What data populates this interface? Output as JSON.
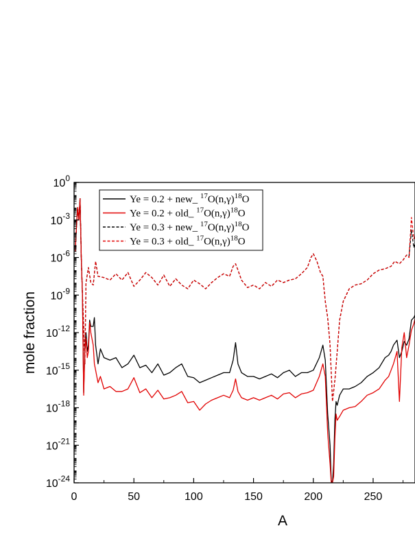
{
  "chart_data": {
    "type": "line",
    "xlabel": "A",
    "ylabel": "mole fraction",
    "xlim": [
      0,
      285
    ],
    "ylim_log10": [
      -24,
      0
    ],
    "yscale": "log",
    "grid": false,
    "legend_placement": "top-left",
    "x_ticks": [
      0,
      50,
      100,
      150,
      200,
      250
    ],
    "y_ticks": [
      {
        "exp": 0,
        "base": "10",
        "sup": "0"
      },
      {
        "exp": -3,
        "base": "10",
        "sup": "-3"
      },
      {
        "exp": -6,
        "base": "10",
        "sup": "-6"
      },
      {
        "exp": -9,
        "base": "10",
        "sup": "-9"
      },
      {
        "exp": -12,
        "base": "10",
        "sup": "-12"
      },
      {
        "exp": -15,
        "base": "10",
        "sup": "-15"
      },
      {
        "exp": -18,
        "base": "10",
        "sup": "-18"
      },
      {
        "exp": -21,
        "base": "10",
        "sup": "-21"
      },
      {
        "exp": -24,
        "base": "10",
        "sup": "-24"
      }
    ],
    "series": [
      {
        "id": "s1",
        "name": "Ye = 0.2 + new_ 17O(n,γ)18O",
        "color": "#000000",
        "dash": "solid",
        "x": [
          1,
          2,
          3,
          4,
          5,
          6,
          7,
          8,
          9,
          10,
          11,
          12,
          13,
          14,
          16,
          17,
          18,
          20,
          22,
          25,
          30,
          35,
          40,
          45,
          50,
          55,
          60,
          65,
          70,
          75,
          80,
          85,
          90,
          95,
          100,
          105,
          110,
          115,
          120,
          125,
          130,
          133,
          135,
          137,
          140,
          145,
          150,
          155,
          160,
          165,
          170,
          175,
          180,
          185,
          190,
          195,
          200,
          205,
          208,
          210,
          212,
          214,
          215,
          216,
          217,
          218,
          219,
          220,
          222,
          225,
          230,
          235,
          240,
          245,
          250,
          255,
          260,
          263,
          265,
          267,
          270,
          272,
          274,
          276,
          278,
          280,
          282,
          284,
          285
        ],
        "log10": [
          -5.5,
          -3.5,
          -2,
          -3,
          -1.3,
          -6,
          -9,
          -16.8,
          -13,
          -12,
          -13.5,
          -13,
          -11,
          -11.5,
          -11.5,
          -10.8,
          -13,
          -14.5,
          -13.3,
          -14,
          -14.2,
          -14,
          -14.8,
          -14.5,
          -13.8,
          -14.8,
          -14.6,
          -15.2,
          -14.5,
          -15.4,
          -15.2,
          -14.8,
          -14.5,
          -15.5,
          -15.6,
          -16,
          -15.8,
          -15.6,
          -15.4,
          -15.2,
          -15.2,
          -14.2,
          -12.8,
          -14.5,
          -15.2,
          -15.5,
          -15.5,
          -15.7,
          -15.5,
          -15.3,
          -15.6,
          -15.2,
          -15,
          -15.5,
          -15.2,
          -15.2,
          -15,
          -14,
          -13,
          -14.2,
          -18.5,
          -21,
          -23.8,
          -24,
          -22.5,
          -19,
          -17.5,
          -17.8,
          -17,
          -16.5,
          -16.5,
          -16.3,
          -16,
          -15.5,
          -15.2,
          -14.8,
          -14,
          -13.8,
          -13.5,
          -13,
          -12.6,
          -14,
          -13.5,
          -12.7,
          -13,
          -12.5,
          -11,
          -10.8,
          -10.6
        ]
      },
      {
        "id": "s2",
        "name": "Ye = 0.2 + old_ 17O(n,γ)18O",
        "color": "#e10000",
        "dash": "solid",
        "x": [
          1,
          2,
          3,
          4,
          5,
          6,
          7,
          8,
          9,
          10,
          11,
          12,
          13,
          14,
          16,
          17,
          18,
          20,
          22,
          25,
          30,
          35,
          40,
          45,
          50,
          55,
          60,
          65,
          70,
          75,
          80,
          85,
          90,
          95,
          100,
          105,
          110,
          115,
          120,
          125,
          130,
          133,
          135,
          137,
          140,
          145,
          150,
          155,
          160,
          165,
          170,
          175,
          180,
          185,
          190,
          195,
          200,
          205,
          208,
          210,
          212,
          214,
          215,
          216,
          217,
          218,
          219,
          220,
          222,
          225,
          230,
          235,
          240,
          245,
          250,
          255,
          260,
          263,
          265,
          267,
          270,
          272,
          274,
          276,
          278,
          280,
          282,
          284,
          285
        ],
        "log10": [
          -5.5,
          -3.5,
          -2,
          -3,
          -1.3,
          -6,
          -9,
          -17,
          -13.5,
          -12.5,
          -14,
          -13.5,
          -11.2,
          -12,
          -13,
          -14.5,
          -15,
          -16,
          -15.5,
          -16.5,
          -16.3,
          -16.7,
          -16.7,
          -16.5,
          -15.6,
          -16.8,
          -16.5,
          -17.2,
          -16.6,
          -17.3,
          -17.2,
          -17,
          -16.7,
          -17.6,
          -17.5,
          -18.2,
          -17.7,
          -17.4,
          -17.2,
          -17,
          -17.2,
          -16.6,
          -15.7,
          -16.7,
          -17.2,
          -17.4,
          -17.2,
          -17.4,
          -17.2,
          -17,
          -17.3,
          -16.9,
          -16.8,
          -17.2,
          -16.9,
          -16.8,
          -16.6,
          -15.5,
          -14.5,
          -15.5,
          -20,
          -22.5,
          -24,
          -24,
          -23.5,
          -20.5,
          -18.5,
          -19,
          -18.7,
          -18.2,
          -18,
          -17.9,
          -17.5,
          -17,
          -16.8,
          -16.5,
          -15.8,
          -15.5,
          -15,
          -14.5,
          -13.5,
          -17.5,
          -13.2,
          -12,
          -14,
          -13,
          -11.8,
          -11.3,
          -10.9
        ]
      },
      {
        "id": "s3",
        "name": "Ye = 0.3 + new_ 17O(n,γ)18O",
        "color": "#000000",
        "dash": "dashed",
        "x": [
          1,
          2,
          3,
          4,
          5,
          6,
          7,
          8,
          9,
          10,
          12,
          14,
          16,
          18,
          20,
          25,
          30,
          35,
          40,
          45,
          50,
          55,
          60,
          65,
          70,
          75,
          80,
          85,
          90,
          95,
          100,
          105,
          110,
          115,
          120,
          125,
          130,
          133,
          135,
          137,
          140,
          145,
          150,
          155,
          160,
          165,
          170,
          175,
          180,
          185,
          190,
          195,
          198,
          200,
          203,
          206,
          208,
          210,
          212,
          214,
          216,
          218,
          220,
          222,
          225,
          230,
          235,
          240,
          245,
          250,
          255,
          260,
          265,
          268,
          270,
          272,
          275,
          278,
          280,
          282,
          284,
          285
        ],
        "log10": [
          -5.5,
          -3.5,
          -2,
          -3,
          -1.3,
          -6,
          -9,
          -11.5,
          -14.5,
          -8,
          -6.8,
          -8,
          -8.2,
          -6.3,
          -7.5,
          -7.6,
          -7.8,
          -7.3,
          -7.8,
          -7.2,
          -8.3,
          -7.8,
          -7.2,
          -7.6,
          -8.2,
          -7.4,
          -8.3,
          -7.7,
          -8.2,
          -8.5,
          -7.8,
          -8.1,
          -8.5,
          -8,
          -7.6,
          -7.3,
          -7.5,
          -6.7,
          -6.5,
          -7,
          -7.8,
          -8.4,
          -8.2,
          -8.5,
          -8.0,
          -8.3,
          -7.8,
          -8.0,
          -7.8,
          -7.7,
          -7.3,
          -6.8,
          -6.0,
          -5.7,
          -6.3,
          -7.2,
          -7.5,
          -9.5,
          -10.8,
          -13,
          -17.5,
          -15.8,
          -13.5,
          -11,
          -9.5,
          -8.5,
          -8.2,
          -8.1,
          -7.8,
          -7.3,
          -7.0,
          -6.9,
          -6.7,
          -6.3,
          -6.4,
          -6.5,
          -6.2,
          -5.8,
          -5.9,
          -3.8,
          -5.2,
          -4.8
        ]
      },
      {
        "id": "s4",
        "name": "Ye = 0.3 + old_ 17O(n,γ)18O",
        "color": "#e10000",
        "dash": "dashed",
        "x": [
          1,
          2,
          3,
          4,
          5,
          6,
          7,
          8,
          9,
          10,
          12,
          14,
          16,
          18,
          20,
          25,
          30,
          35,
          40,
          45,
          50,
          55,
          60,
          65,
          70,
          75,
          80,
          85,
          90,
          95,
          100,
          105,
          110,
          115,
          120,
          125,
          130,
          133,
          135,
          137,
          140,
          145,
          150,
          155,
          160,
          165,
          170,
          175,
          180,
          185,
          190,
          195,
          198,
          200,
          203,
          206,
          208,
          210,
          212,
          214,
          216,
          218,
          220,
          222,
          225,
          230,
          235,
          240,
          245,
          250,
          255,
          260,
          265,
          268,
          270,
          272,
          275,
          278,
          280,
          282,
          284,
          285
        ],
        "log10": [
          -5.5,
          -3.5,
          -2,
          -3,
          -1.3,
          -6,
          -9,
          -11.5,
          -14.5,
          -8,
          -6.8,
          -8,
          -8.2,
          -6.3,
          -7.5,
          -7.6,
          -7.8,
          -7.3,
          -7.8,
          -7.2,
          -8.3,
          -7.8,
          -7.2,
          -7.6,
          -8.2,
          -7.4,
          -8.3,
          -7.7,
          -8.2,
          -8.5,
          -7.8,
          -8.1,
          -8.5,
          -8,
          -7.6,
          -7.3,
          -7.5,
          -6.7,
          -6.5,
          -7,
          -7.8,
          -8.4,
          -8.2,
          -8.5,
          -8.0,
          -8.3,
          -7.8,
          -8.0,
          -7.8,
          -7.7,
          -7.3,
          -6.8,
          -6.0,
          -5.7,
          -6.3,
          -7.2,
          -7.5,
          -9.5,
          -10.8,
          -13,
          -17.5,
          -15.8,
          -13.5,
          -11,
          -9.5,
          -8.5,
          -8.2,
          -8.1,
          -7.8,
          -7.3,
          -7.0,
          -6.9,
          -6.7,
          -6.3,
          -6.4,
          -6.5,
          -6.2,
          -5.8,
          -6.0,
          -2.8,
          -4.5,
          -4.3
        ]
      }
    ],
    "legend_entries": [
      {
        "prefix": "Ye = 0.2 + new_ ",
        "pre_sup": "17",
        "mid": "O(n,γ)",
        "post_sup": "18",
        "tail": "O"
      },
      {
        "prefix": "Ye = 0.2 + old_ ",
        "pre_sup": "17",
        "mid": "O(n,γ)",
        "post_sup": "18",
        "tail": "O"
      },
      {
        "prefix": "Ye = 0.3 + new_ ",
        "pre_sup": "17",
        "mid": "O(n,γ)",
        "post_sup": "18",
        "tail": "O"
      },
      {
        "prefix": "Ye = 0.3 + old_ ",
        "pre_sup": "17",
        "mid": "O(n,γ)",
        "post_sup": "18",
        "tail": "O"
      }
    ]
  }
}
